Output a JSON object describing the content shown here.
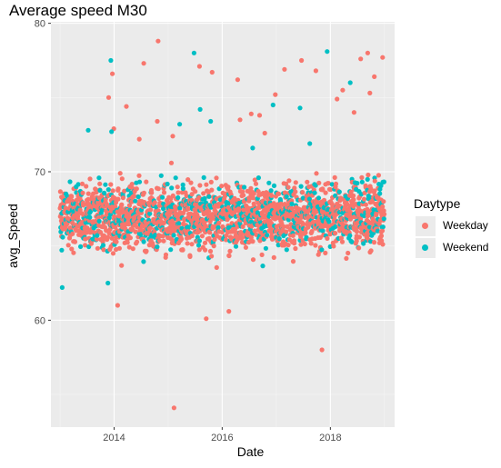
{
  "chart_data": {
    "type": "scatter",
    "title": "Average speed M30",
    "xlabel": "Date",
    "ylabel": "avg_Speed",
    "x_axis": {
      "kind": "date",
      "range": [
        "2012-10-31",
        "2019-03-11"
      ],
      "ticks": [
        "2014-01-01",
        "2016-01-01",
        "2018-01-01"
      ],
      "tick_labels": [
        "2014",
        "2016",
        "2018"
      ]
    },
    "y_axis": {
      "range": [
        52.8,
        80.1
      ],
      "ticks": [
        60,
        70,
        80
      ],
      "tick_labels": [
        "60",
        "70",
        "80"
      ]
    },
    "grid": true,
    "legend": {
      "title": "Daytype",
      "position": "right"
    },
    "series": [
      {
        "name": "Weekday",
        "color": "#F8766D",
        "band": {
          "x_start": "2013-01-01",
          "x_end": "2018-12-31",
          "y_typical": [
            64,
            70
          ],
          "y_scatter": [
            61,
            71.5
          ]
        },
        "points": [
          {
            "x": "2014-10-25",
            "y": 78.8
          },
          {
            "x": "2014-07-20",
            "y": 77.3
          },
          {
            "x": "2013-12-20",
            "y": 76.6
          },
          {
            "x": "2013-11-25",
            "y": 75.0
          },
          {
            "x": "2013-12-30",
            "y": 72.9
          },
          {
            "x": "2014-03-25",
            "y": 74.4
          },
          {
            "x": "2014-06-20",
            "y": 72.2
          },
          {
            "x": "2014-10-20",
            "y": 73.4
          },
          {
            "x": "2015-02-01",
            "y": 72.4
          },
          {
            "x": "2015-08-01",
            "y": 77.1
          },
          {
            "x": "2015-10-25",
            "y": 76.7
          },
          {
            "x": "2016-04-15",
            "y": 76.2
          },
          {
            "x": "2016-07-15",
            "y": 73.9
          },
          {
            "x": "2016-09-10",
            "y": 73.8
          },
          {
            "x": "2016-12-25",
            "y": 75.2
          },
          {
            "x": "2017-02-25",
            "y": 76.9
          },
          {
            "x": "2017-06-20",
            "y": 77.5
          },
          {
            "x": "2017-09-25",
            "y": 76.8
          },
          {
            "x": "2018-02-15",
            "y": 74.9
          },
          {
            "x": "2018-03-25",
            "y": 75.5
          },
          {
            "x": "2018-06-10",
            "y": 74.0
          },
          {
            "x": "2018-07-25",
            "y": 77.6
          },
          {
            "x": "2018-09-10",
            "y": 78.0
          },
          {
            "x": "2018-09-25",
            "y": 75.3
          },
          {
            "x": "2018-10-25",
            "y": 76.4
          },
          {
            "x": "2018-12-20",
            "y": 77.7
          },
          {
            "x": "2014-01-25",
            "y": 61.0
          },
          {
            "x": "2015-02-10",
            "y": 54.1
          },
          {
            "x": "2015-09-15",
            "y": 60.1
          },
          {
            "x": "2016-02-15",
            "y": 60.6
          },
          {
            "x": "2017-11-05",
            "y": 58.0
          },
          {
            "x": "2016-10-15",
            "y": 72.6
          },
          {
            "x": "2016-05-01",
            "y": 73.5
          }
        ]
      },
      {
        "name": "Weekend",
        "color": "#00BFC4",
        "band": {
          "x_start": "2013-01-01",
          "x_end": "2018-12-31",
          "y_typical": [
            64,
            70
          ],
          "y_scatter": [
            62,
            71
          ]
        },
        "points": [
          {
            "x": "2013-12-10",
            "y": 77.5
          },
          {
            "x": "2015-06-25",
            "y": 78.0
          },
          {
            "x": "2013-07-10",
            "y": 72.8
          },
          {
            "x": "2013-12-15",
            "y": 72.7
          },
          {
            "x": "2015-03-20",
            "y": 73.2
          },
          {
            "x": "2015-08-05",
            "y": 74.2
          },
          {
            "x": "2015-10-15",
            "y": 73.4
          },
          {
            "x": "2016-07-25",
            "y": 71.6
          },
          {
            "x": "2016-12-10",
            "y": 74.5
          },
          {
            "x": "2017-06-10",
            "y": 74.3
          },
          {
            "x": "2017-08-15",
            "y": 71.9
          },
          {
            "x": "2017-12-10",
            "y": 78.1
          },
          {
            "x": "2018-05-15",
            "y": 76.0
          },
          {
            "x": "2013-01-15",
            "y": 62.2
          },
          {
            "x": "2013-11-20",
            "y": 62.5
          }
        ]
      }
    ]
  }
}
